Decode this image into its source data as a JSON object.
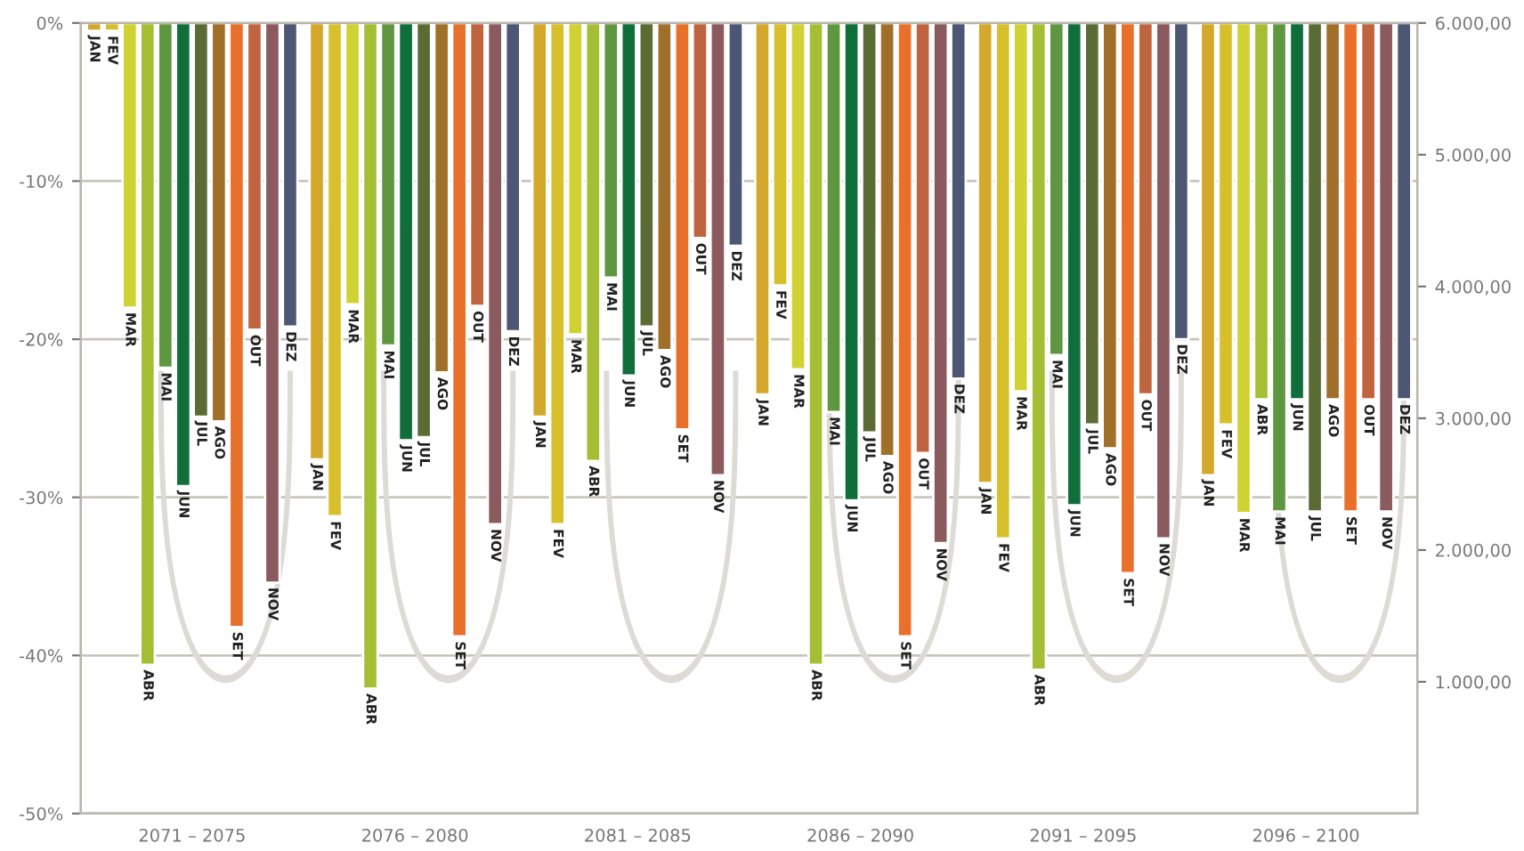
{
  "chart_data": {
    "type": "bar",
    "categories": [
      "2071 – 2075",
      "2076 – 2080",
      "2081 – 2085",
      "2086 – 2090",
      "2091 – 2095",
      "2096 – 2100"
    ],
    "series": [
      {
        "name": "JAN",
        "color": "#d4a82a",
        "values": [
          -0.5,
          -27.6,
          -24.9,
          -23.5,
          -29.1,
          -28.6
        ]
      },
      {
        "name": "FEV",
        "color": "#d7c02c",
        "values": [
          -0.5,
          -31.2,
          -31.7,
          -16.6,
          -32.6,
          -25.4
        ]
      },
      {
        "name": "MAR",
        "color": "#cfd232",
        "values": [
          -18.0,
          -17.8,
          -19.7,
          -21.9,
          -23.3,
          -31.0
        ]
      },
      {
        "name": "ABR",
        "color": "#a5bf35",
        "values": [
          -40.6,
          -42.1,
          -27.7,
          -40.6,
          -40.9,
          -23.8
        ]
      },
      {
        "name": "MAI",
        "color": "#5f9640",
        "values": [
          -21.8,
          -20.4,
          -16.1,
          -24.6,
          -21.0,
          -30.9
        ]
      },
      {
        "name": "JUN",
        "color": "#0f6e3a",
        "values": [
          -29.3,
          -26.4,
          -22.3,
          -30.2,
          -30.5,
          -23.8
        ]
      },
      {
        "name": "JUL",
        "color": "#5a6b34",
        "values": [
          -24.9,
          -26.2,
          -19.2,
          -25.9,
          -25.4,
          -30.9
        ]
      },
      {
        "name": "AGO",
        "color": "#a0702b",
        "values": [
          -25.2,
          -22.1,
          -20.7,
          -27.4,
          -26.9,
          -23.8
        ]
      },
      {
        "name": "SET",
        "color": "#e8702a",
        "values": [
          -38.2,
          -38.8,
          -25.7,
          -38.8,
          -34.8,
          -30.9
        ]
      },
      {
        "name": "OUT",
        "color": "#c0643f",
        "values": [
          -19.4,
          -17.9,
          -13.6,
          -27.2,
          -23.5,
          -23.8
        ]
      },
      {
        "name": "NOV",
        "color": "#8a5a5e",
        "values": [
          -35.4,
          -31.7,
          -28.6,
          -32.9,
          -32.6,
          -30.9
        ]
      },
      {
        "name": "DEZ",
        "color": "#4e5675",
        "values": [
          -19.2,
          -19.5,
          -14.1,
          -22.5,
          -20.0,
          -23.8
        ]
      }
    ],
    "ylim": [
      -50,
      0
    ],
    "yticks": [
      {
        "value": 0,
        "label": "0%"
      },
      {
        "value": -10,
        "label": "-10%"
      },
      {
        "value": -20,
        "label": "-20%"
      },
      {
        "value": -30,
        "label": "-30%"
      },
      {
        "value": -40,
        "label": "-40%"
      },
      {
        "value": -50,
        "label": "-50%"
      }
    ],
    "y2lim": [
      0,
      6000
    ],
    "y2ticks": [
      {
        "value": 1000,
        "label": "1.000,00"
      },
      {
        "value": 2000,
        "label": "2.000,00"
      },
      {
        "value": 3000,
        "label": "3.000,00"
      },
      {
        "value": 4000,
        "label": "4.000,00"
      },
      {
        "value": 5000,
        "label": "5.000,00"
      },
      {
        "value": 6000,
        "label": "6.000,00"
      }
    ],
    "grid": true,
    "legend": false
  }
}
